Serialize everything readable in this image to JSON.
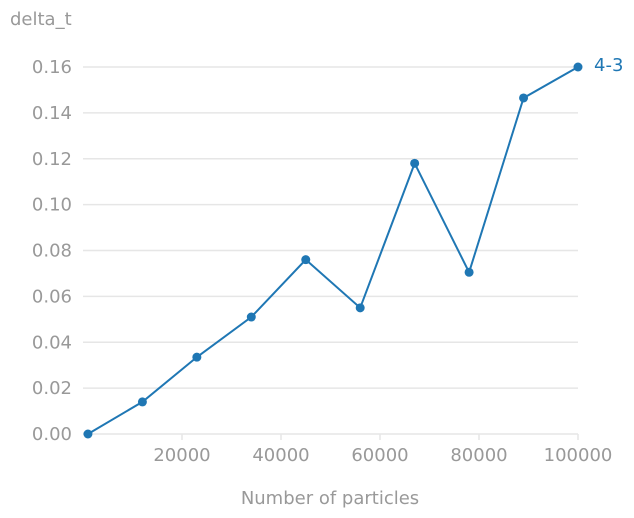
{
  "chart_data": {
    "type": "line",
    "title": "",
    "xlabel": "Number of particles",
    "ylabel": "delta_t",
    "xlim": [
      0,
      100000
    ],
    "ylim": [
      0,
      0.16
    ],
    "xticks": [
      20000,
      40000,
      60000,
      80000,
      100000
    ],
    "xtick_labels": [
      "20000",
      "40000",
      "60000",
      "80000",
      "100000"
    ],
    "yticks": [
      0,
      0.02,
      0.04,
      0.06,
      0.08,
      0.1,
      0.12,
      0.14,
      0.16
    ],
    "ytick_labels": [
      "0.00",
      "0.02",
      "0.04",
      "0.06",
      "0.08",
      "0.10",
      "0.12",
      "0.14",
      "0.16"
    ],
    "grid": "horizontal",
    "series": [
      {
        "name": "4-3",
        "color": "#1f77b4",
        "x": [
          1000,
          12000,
          23000,
          34000,
          45000,
          56000,
          67000,
          78000,
          89000,
          100000
        ],
        "y": [
          0.0,
          0.014,
          0.0335,
          0.051,
          0.076,
          0.055,
          0.118,
          0.0705,
          0.1465,
          0.16
        ]
      }
    ]
  }
}
